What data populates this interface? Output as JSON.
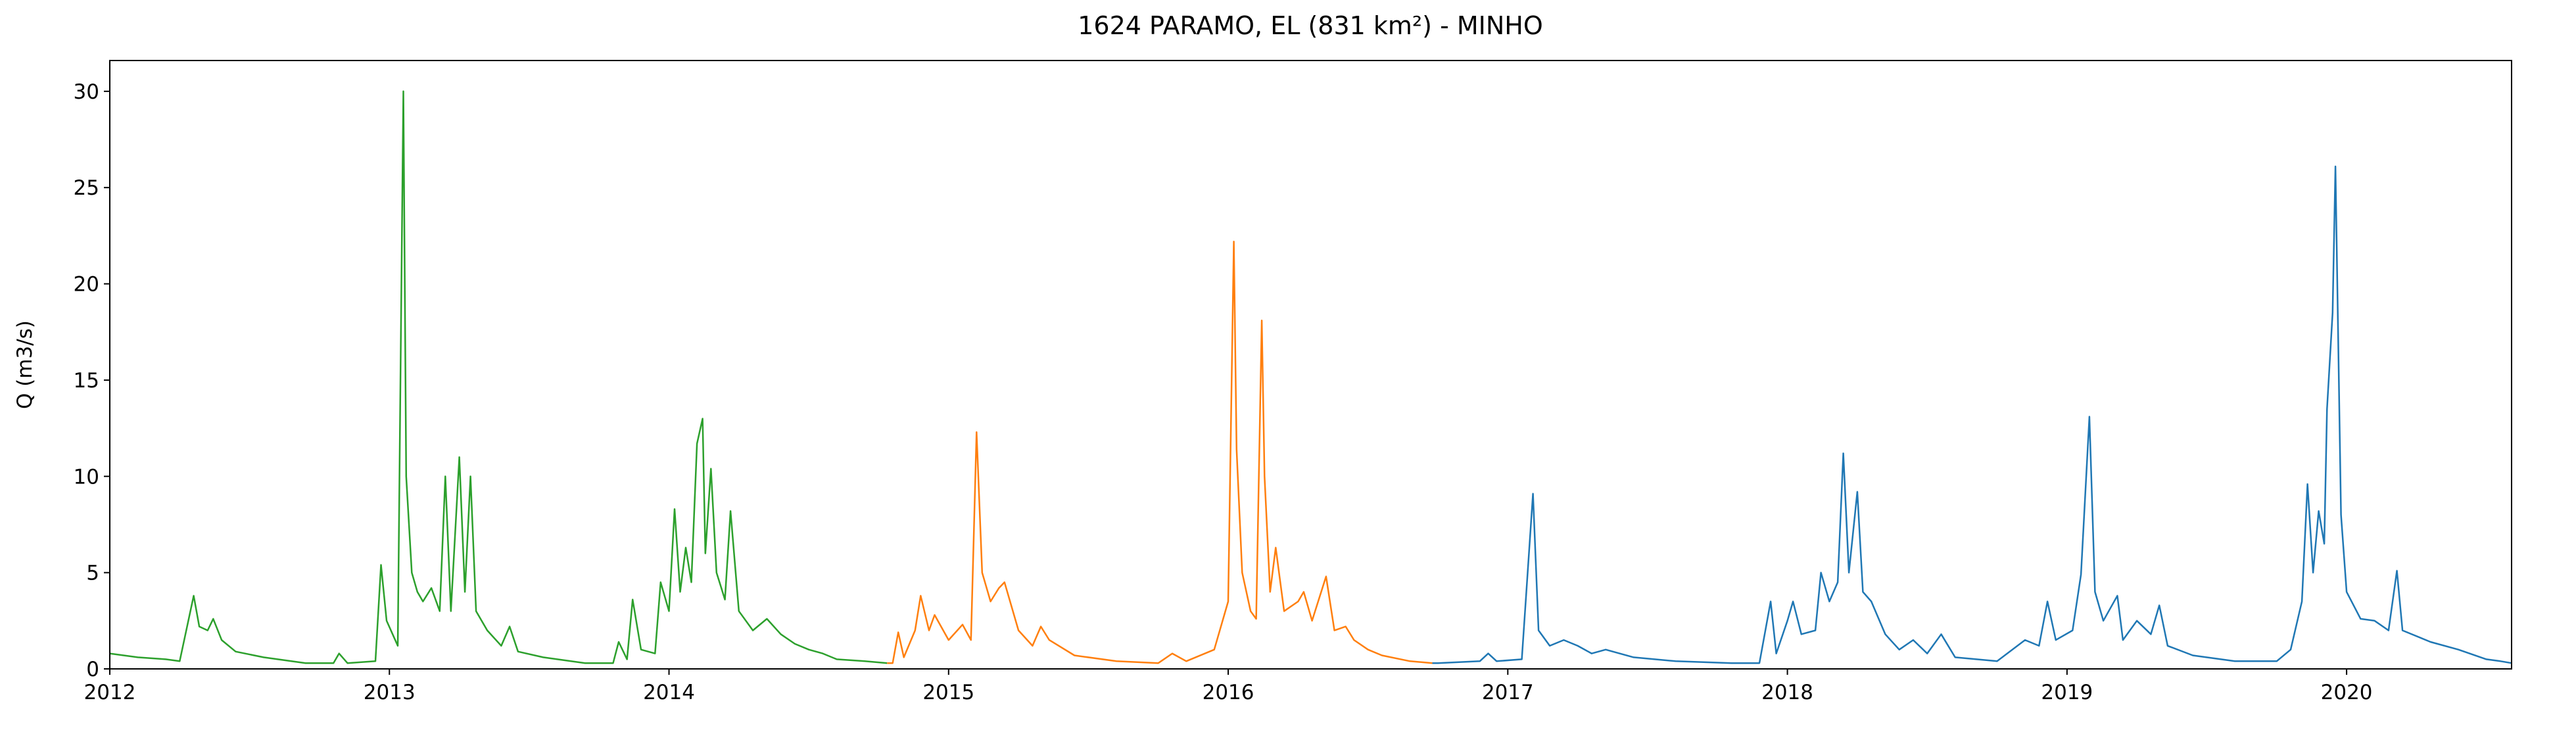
{
  "chart_data": {
    "type": "line",
    "title": "1624 PARAMO, EL (831 km²) - MINHO",
    "y_label": "Q (m3/s)",
    "xlim": [
      2012,
      2020.59
    ],
    "xticks": [
      2012,
      2013,
      2014,
      2015,
      2016,
      2017,
      2018,
      2019,
      2020
    ],
    "ylim": [
      0,
      31.6
    ],
    "yticks": [
      0,
      5,
      10,
      15,
      20,
      25,
      30
    ],
    "grid": false,
    "series": [
      {
        "color": "#2ca02c",
        "x": [
          2012.0,
          2012.1,
          2012.2,
          2012.25,
          2012.3,
          2012.32,
          2012.35,
          2012.37,
          2012.4,
          2012.45,
          2012.55,
          2012.7,
          2012.8,
          2012.82,
          2012.85,
          2012.95,
          2012.97,
          2012.99,
          2013.03,
          2013.05,
          2013.06,
          2013.08,
          2013.1,
          2013.12,
          2013.15,
          2013.18,
          2013.2,
          2013.22,
          2013.25,
          2013.27,
          2013.29,
          2013.31,
          2013.35,
          2013.4,
          2013.43,
          2013.46,
          2013.55,
          2013.7,
          2013.8,
          2013.82,
          2013.85,
          2013.87,
          2013.9,
          2013.95,
          2013.97,
          2014.0,
          2014.02,
          2014.04,
          2014.06,
          2014.08,
          2014.1,
          2014.12,
          2014.13,
          2014.15,
          2014.17,
          2014.2,
          2014.22,
          2014.25,
          2014.3,
          2014.35,
          2014.4,
          2014.45,
          2014.5,
          2014.55,
          2014.6,
          2014.7,
          2014.78
        ],
        "values": [
          0.8,
          0.6,
          0.5,
          0.4,
          3.8,
          2.2,
          2.0,
          2.6,
          1.5,
          0.9,
          0.6,
          0.3,
          0.3,
          0.8,
          0.3,
          0.4,
          5.4,
          2.5,
          1.2,
          30,
          10,
          5,
          4,
          3.5,
          4.2,
          3.0,
          10,
          3,
          11,
          4,
          10,
          3,
          2.0,
          1.2,
          2.2,
          0.9,
          0.6,
          0.3,
          0.3,
          1.4,
          0.5,
          3.6,
          1.0,
          0.8,
          4.5,
          3.0,
          8.3,
          4,
          6.3,
          4.5,
          11.7,
          13,
          6,
          10.4,
          5,
          3.6,
          8.2,
          3.0,
          2.0,
          2.6,
          1.8,
          1.3,
          1.0,
          0.8,
          0.5,
          0.4,
          0.3
        ]
      },
      {
        "color": "#ff7f0e",
        "x": [
          2014.78,
          2014.8,
          2014.82,
          2014.84,
          2014.88,
          2014.9,
          2014.93,
          2014.95,
          2015.0,
          2015.05,
          2015.08,
          2015.1,
          2015.12,
          2015.15,
          2015.18,
          2015.2,
          2015.25,
          2015.3,
          2015.33,
          2015.36,
          2015.45,
          2015.6,
          2015.75,
          2015.8,
          2015.85,
          2015.95,
          2016.0,
          2016.02,
          2016.03,
          2016.05,
          2016.08,
          2016.1,
          2016.12,
          2016.13,
          2016.15,
          2016.17,
          2016.2,
          2016.25,
          2016.27,
          2016.3,
          2016.35,
          2016.38,
          2016.42,
          2016.45,
          2016.5,
          2016.55,
          2016.65,
          2016.73
        ],
        "values": [
          0.3,
          0.3,
          1.9,
          0.6,
          2.0,
          3.8,
          2.0,
          2.8,
          1.5,
          2.3,
          1.5,
          12.3,
          5,
          3.5,
          4.2,
          4.5,
          2.0,
          1.2,
          2.2,
          1.5,
          0.7,
          0.4,
          0.3,
          0.8,
          0.4,
          1.0,
          3.5,
          22.2,
          11.4,
          5,
          3,
          2.6,
          18.1,
          10,
          4,
          6.3,
          3,
          3.5,
          4.0,
          2.5,
          4.8,
          2.0,
          2.2,
          1.5,
          1.0,
          0.7,
          0.4,
          0.3
        ]
      },
      {
        "color": "#1f77b4",
        "x": [
          2016.73,
          2016.75,
          2016.9,
          2016.93,
          2016.96,
          2017.05,
          2017.09,
          2017.11,
          2017.15,
          2017.2,
          2017.25,
          2017.3,
          2017.35,
          2017.45,
          2017.6,
          2017.8,
          2017.9,
          2017.94,
          2017.96,
          2018.0,
          2018.02,
          2018.05,
          2018.1,
          2018.12,
          2018.15,
          2018.18,
          2018.2,
          2018.22,
          2018.25,
          2018.27,
          2018.3,
          2018.35,
          2018.4,
          2018.45,
          2018.5,
          2018.55,
          2018.6,
          2018.75,
          2018.85,
          2018.9,
          2018.93,
          2018.96,
          2019.02,
          2019.05,
          2019.08,
          2019.1,
          2019.13,
          2019.18,
          2019.2,
          2019.25,
          2019.3,
          2019.33,
          2019.36,
          2019.45,
          2019.6,
          2019.75,
          2019.8,
          2019.84,
          2019.86,
          2019.88,
          2019.9,
          2019.92,
          2019.93,
          2019.95,
          2019.96,
          2019.98,
          2020.0,
          2020.05,
          2020.1,
          2020.15,
          2020.18,
          2020.2,
          2020.3,
          2020.4,
          2020.5,
          2020.55,
          2020.59
        ],
        "values": [
          0.3,
          0.3,
          0.4,
          0.8,
          0.4,
          0.5,
          9.1,
          2,
          1.2,
          1.5,
          1.2,
          0.8,
          1.0,
          0.6,
          0.4,
          0.3,
          0.3,
          3.5,
          0.8,
          2.5,
          3.5,
          1.8,
          2.0,
          5.0,
          3.5,
          4.5,
          11.2,
          5,
          9.2,
          4,
          3.5,
          1.8,
          1.0,
          1.5,
          0.8,
          1.8,
          0.6,
          0.4,
          1.5,
          1.2,
          3.5,
          1.5,
          2.0,
          4.9,
          13.1,
          4,
          2.5,
          3.8,
          1.5,
          2.5,
          1.8,
          3.3,
          1.2,
          0.7,
          0.4,
          0.4,
          1.0,
          3.5,
          9.6,
          5,
          8.2,
          6.5,
          13.5,
          18.5,
          26.1,
          8,
          4,
          2.6,
          2.5,
          2.0,
          5.1,
          2.0,
          1.4,
          1.0,
          0.5,
          0.4,
          0.3
        ]
      }
    ]
  }
}
